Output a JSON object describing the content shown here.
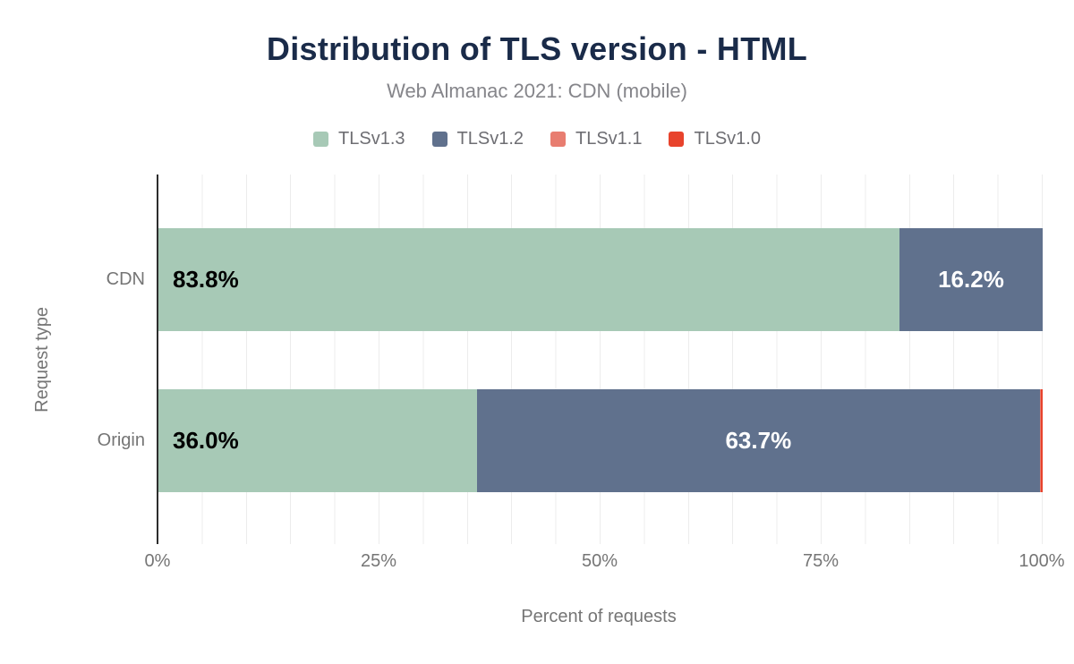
{
  "chart_data": {
    "type": "bar",
    "variant": "horizontal-stacked",
    "title": "Distribution of TLS version - HTML",
    "subtitle": "Web Almanac 2021: CDN (mobile)",
    "categories": [
      "CDN",
      "Origin"
    ],
    "series": [
      {
        "name": "TLSv1.3",
        "color": "#a7c9b6",
        "values": [
          83.8,
          36.0
        ]
      },
      {
        "name": "TLSv1.2",
        "color": "#60718d",
        "values": [
          16.2,
          63.7
        ]
      },
      {
        "name": "TLSv1.1",
        "color": "#e87d70",
        "values": [
          0.0,
          0.1
        ]
      },
      {
        "name": "TLSv1.0",
        "color": "#e8432c",
        "values": [
          0.0,
          0.2
        ]
      }
    ],
    "visible_bar_labels": [
      "83.8%",
      "16.2%",
      "36.0%",
      "63.7%"
    ],
    "xlabel": "Percent of requests",
    "ylabel": "Request type",
    "x_ticks": [
      "0%",
      "25%",
      "50%",
      "75%",
      "100%"
    ],
    "xlim": [
      0,
      100
    ],
    "grid": "vertical gridlines every 5%",
    "legend_position": "top-center",
    "colors": {
      "title": "#1a2b49",
      "subtitle": "#85858a",
      "axis_text": "#757575",
      "gridline": "#ececec",
      "axis_line": "#2d2d2d",
      "label_dark": "#000000",
      "label_light": "#ffffff",
      "background": "#ffffff"
    }
  }
}
